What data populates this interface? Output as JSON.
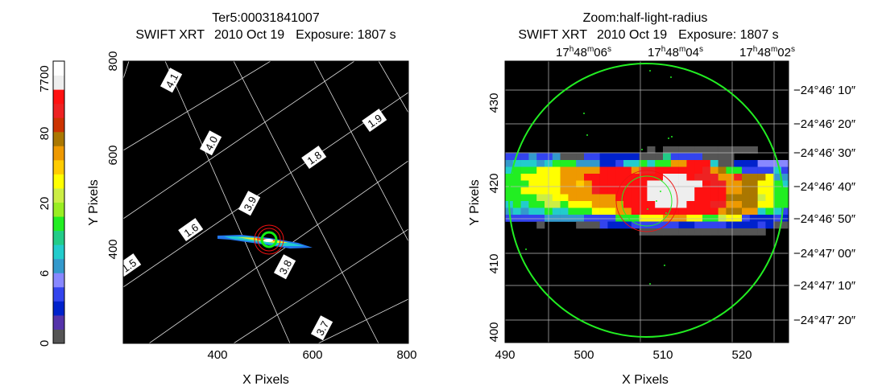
{
  "colorbar": {
    "ticks": [
      "0",
      "6",
      "20",
      "80",
      "7700"
    ],
    "colors": [
      "#555555",
      "#5533aa",
      "#0022cc",
      "#3344ee",
      "#8888ff",
      "#3399cc",
      "#22cccc",
      "#22cc88",
      "#22ee22",
      "#99ee22",
      "#ccee44",
      "#ffff00",
      "#ffcc00",
      "#ee9900",
      "#aa7700",
      "#cc3300",
      "#ee2222",
      "#ff1111",
      "#eeeeee",
      "#ffffff"
    ]
  },
  "chart_data": [
    {
      "type": "heatmap",
      "title": "Ter5:00031841007",
      "subtitle": "SWIFT XRT",
      "date": "2010 Oct 19",
      "exposure": "Exposure: 1807 s",
      "xlabel": "X Pixels",
      "ylabel": "Y Pixels",
      "xlim": [
        200,
        800
      ],
      "ylim": [
        200,
        800
      ],
      "xticks": [
        "400",
        "600",
        "800"
      ],
      "yticks": [
        "400",
        "600",
        "800"
      ],
      "grid_labels": [
        "4.1",
        "4.0",
        "3.9",
        "3.8",
        "3.7",
        "1.9",
        "1.8",
        "1.6",
        "1.5"
      ],
      "source_center": [
        510,
        428
      ]
    },
    {
      "type": "heatmap",
      "title": "Zoom:half-light-radius",
      "subtitle": "SWIFT XRT",
      "date": "2010 Oct 19",
      "exposure": "Exposure: 1807 s",
      "xlabel": "X Pixels",
      "ylabel": "Y Pixels",
      "xlim": [
        490,
        526
      ],
      "ylim": [
        400,
        435
      ],
      "xticks": [
        "490",
        "500",
        "510",
        "520"
      ],
      "yticks": [
        "400",
        "410",
        "420",
        "430"
      ],
      "ra_ticks": [
        {
          "h": "17",
          "m": "48",
          "s": "06"
        },
        {
          "h": "17",
          "m": "48",
          "s": "04"
        },
        {
          "h": "17",
          "m": "48",
          "s": "02"
        }
      ],
      "dec_ticks": [
        "−24°46′ 10″",
        "−24°46′ 20″",
        "−24°46′ 30″",
        "−24°46′ 40″",
        "−24°46′ 50″",
        "−24°47′ 00″",
        "−24°47′ 10″",
        "−24°47′ 20″"
      ]
    }
  ]
}
